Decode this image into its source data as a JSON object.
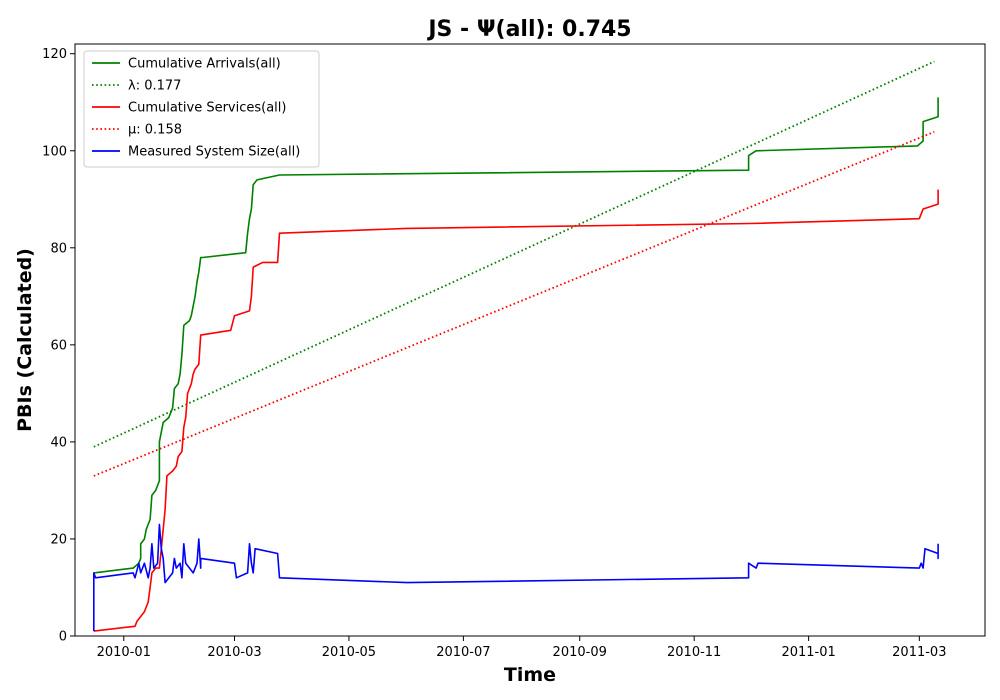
{
  "chart_data": {
    "type": "line",
    "title": "JS -  Ψ(all): 0.745",
    "xlabel": "Time",
    "ylabel": "PBIs (Calculated)",
    "xlim": [
      "2009-12-06",
      "2011-04-05"
    ],
    "ylim": [
      0,
      122
    ],
    "x_ticks": [
      {
        "date": "2010-01-01",
        "label": "2010-01"
      },
      {
        "date": "2010-03-01",
        "label": "2010-03"
      },
      {
        "date": "2010-05-01",
        "label": "2010-05"
      },
      {
        "date": "2010-07-01",
        "label": "2010-07"
      },
      {
        "date": "2010-09-01",
        "label": "2010-09"
      },
      {
        "date": "2010-11-01",
        "label": "2010-11"
      },
      {
        "date": "2011-01-01",
        "label": "2011-01"
      },
      {
        "date": "2011-03-01",
        "label": "2011-03"
      }
    ],
    "y_ticks": [
      0,
      20,
      40,
      60,
      80,
      100,
      120
    ],
    "grid": false,
    "legend_position": "top-left",
    "series": [
      {
        "name": "Cumulative Arrivals(all)",
        "color": "#008000",
        "style": "solid",
        "points": [
          [
            "2009-12-16",
            13
          ],
          [
            "2010-01-06",
            14
          ],
          [
            "2010-01-09",
            15
          ],
          [
            "2010-01-10",
            16
          ],
          [
            "2010-01-10",
            19
          ],
          [
            "2010-01-12",
            20
          ],
          [
            "2010-01-13",
            22
          ],
          [
            "2010-01-15",
            24
          ],
          [
            "2010-01-16",
            29
          ],
          [
            "2010-01-18",
            30
          ],
          [
            "2010-01-20",
            32
          ],
          [
            "2010-01-20",
            35
          ],
          [
            "2010-01-20",
            40
          ],
          [
            "2010-01-21",
            42
          ],
          [
            "2010-01-22",
            44
          ],
          [
            "2010-01-25",
            45
          ],
          [
            "2010-01-27",
            47
          ],
          [
            "2010-01-28",
            51
          ],
          [
            "2010-01-30",
            52
          ],
          [
            "2010-01-31",
            54
          ],
          [
            "2010-02-01",
            58
          ],
          [
            "2010-02-02",
            64
          ],
          [
            "2010-02-05",
            65
          ],
          [
            "2010-02-06",
            66
          ],
          [
            "2010-02-08",
            70
          ],
          [
            "2010-02-09",
            73
          ],
          [
            "2010-02-10",
            75
          ],
          [
            "2010-02-11",
            78
          ],
          [
            "2010-02-12",
            78
          ],
          [
            "2010-03-07",
            79
          ],
          [
            "2010-03-08",
            83
          ],
          [
            "2010-03-09",
            86
          ],
          [
            "2010-03-10",
            88
          ],
          [
            "2010-03-11",
            93
          ],
          [
            "2010-03-13",
            94
          ],
          [
            "2010-03-25",
            95
          ],
          [
            "2010-11-30",
            96
          ],
          [
            "2010-11-30",
            99
          ],
          [
            "2010-12-04",
            100
          ],
          [
            "2011-02-28",
            101
          ],
          [
            "2011-03-03",
            102
          ],
          [
            "2011-03-03",
            106
          ],
          [
            "2011-03-11",
            107
          ],
          [
            "2011-03-11",
            111
          ]
        ]
      },
      {
        "name": "λ: 0.177",
        "color": "#008000",
        "style": "dotted",
        "points": [
          [
            "2009-12-16",
            39
          ],
          [
            "2011-03-09",
            118.4
          ]
        ]
      },
      {
        "name": "Cumulative Services(all)",
        "color": "#ff0000",
        "style": "solid",
        "points": [
          [
            "2009-12-16",
            1
          ],
          [
            "2010-01-07",
            2
          ],
          [
            "2010-01-08",
            3
          ],
          [
            "2010-01-12",
            5
          ],
          [
            "2010-01-14",
            7
          ],
          [
            "2010-01-15",
            10
          ],
          [
            "2010-01-16",
            13
          ],
          [
            "2010-01-18",
            14
          ],
          [
            "2010-01-20",
            14
          ],
          [
            "2010-01-21",
            18
          ],
          [
            "2010-01-22",
            22
          ],
          [
            "2010-01-23",
            26
          ],
          [
            "2010-01-24",
            33
          ],
          [
            "2010-01-27",
            34
          ],
          [
            "2010-01-29",
            35
          ],
          [
            "2010-01-30",
            37
          ],
          [
            "2010-02-01",
            38
          ],
          [
            "2010-02-02",
            43
          ],
          [
            "2010-02-03",
            45
          ],
          [
            "2010-02-04",
            50
          ],
          [
            "2010-02-06",
            52
          ],
          [
            "2010-02-07",
            54
          ],
          [
            "2010-02-08",
            55
          ],
          [
            "2010-02-10",
            56
          ],
          [
            "2010-02-11",
            62
          ],
          [
            "2010-02-27",
            63
          ],
          [
            "2010-03-01",
            66
          ],
          [
            "2010-03-09",
            67
          ],
          [
            "2010-03-10",
            70
          ],
          [
            "2010-03-11",
            76
          ],
          [
            "2010-03-16",
            77
          ],
          [
            "2010-03-24",
            77
          ],
          [
            "2010-03-25",
            83
          ],
          [
            "2010-06-01",
            84
          ],
          [
            "2010-12-01",
            85
          ],
          [
            "2011-03-01",
            86
          ],
          [
            "2011-03-03",
            88
          ],
          [
            "2011-03-11",
            89
          ],
          [
            "2011-03-11",
            92
          ]
        ]
      },
      {
        "name": "μ: 0.158",
        "color": "#ff0000",
        "style": "dotted",
        "points": [
          [
            "2009-12-16",
            33
          ],
          [
            "2011-03-09",
            103.9
          ]
        ]
      },
      {
        "name": "Measured System Size(all)",
        "color": "#0000ff",
        "style": "solid",
        "points": [
          [
            "2009-12-16",
            1
          ],
          [
            "2009-12-16",
            13
          ],
          [
            "2009-12-17",
            12
          ],
          [
            "2010-01-06",
            13
          ],
          [
            "2010-01-07",
            12
          ],
          [
            "2010-01-09",
            15
          ],
          [
            "2010-01-10",
            13
          ],
          [
            "2010-01-12",
            15
          ],
          [
            "2010-01-14",
            12
          ],
          [
            "2010-01-15",
            14
          ],
          [
            "2010-01-16",
            19
          ],
          [
            "2010-01-17",
            14
          ],
          [
            "2010-01-19",
            15
          ],
          [
            "2010-01-20",
            23
          ],
          [
            "2010-01-21",
            18
          ],
          [
            "2010-01-22",
            16
          ],
          [
            "2010-01-23",
            11
          ],
          [
            "2010-01-27",
            13
          ],
          [
            "2010-01-28",
            16
          ],
          [
            "2010-01-29",
            14
          ],
          [
            "2010-01-31",
            15
          ],
          [
            "2010-02-01",
            12
          ],
          [
            "2010-02-02",
            19
          ],
          [
            "2010-02-03",
            15
          ],
          [
            "2010-02-05",
            14
          ],
          [
            "2010-02-07",
            13
          ],
          [
            "2010-02-09",
            15
          ],
          [
            "2010-02-10",
            20
          ],
          [
            "2010-02-11",
            14
          ],
          [
            "2010-02-11",
            16
          ],
          [
            "2010-03-01",
            15
          ],
          [
            "2010-03-02",
            12
          ],
          [
            "2010-03-08",
            13
          ],
          [
            "2010-03-09",
            19
          ],
          [
            "2010-03-10",
            15
          ],
          [
            "2010-03-11",
            13
          ],
          [
            "2010-03-12",
            18
          ],
          [
            "2010-03-24",
            17
          ],
          [
            "2010-03-25",
            12
          ],
          [
            "2010-06-01",
            11
          ],
          [
            "2010-11-30",
            12
          ],
          [
            "2010-11-30",
            15
          ],
          [
            "2010-12-04",
            14
          ],
          [
            "2010-12-05",
            15
          ],
          [
            "2011-03-01",
            14
          ],
          [
            "2011-03-02",
            15
          ],
          [
            "2011-03-03",
            14
          ],
          [
            "2011-03-04",
            18
          ],
          [
            "2011-03-11",
            17
          ],
          [
            "2011-03-11",
            16
          ],
          [
            "2011-03-11",
            19
          ]
        ]
      }
    ]
  }
}
